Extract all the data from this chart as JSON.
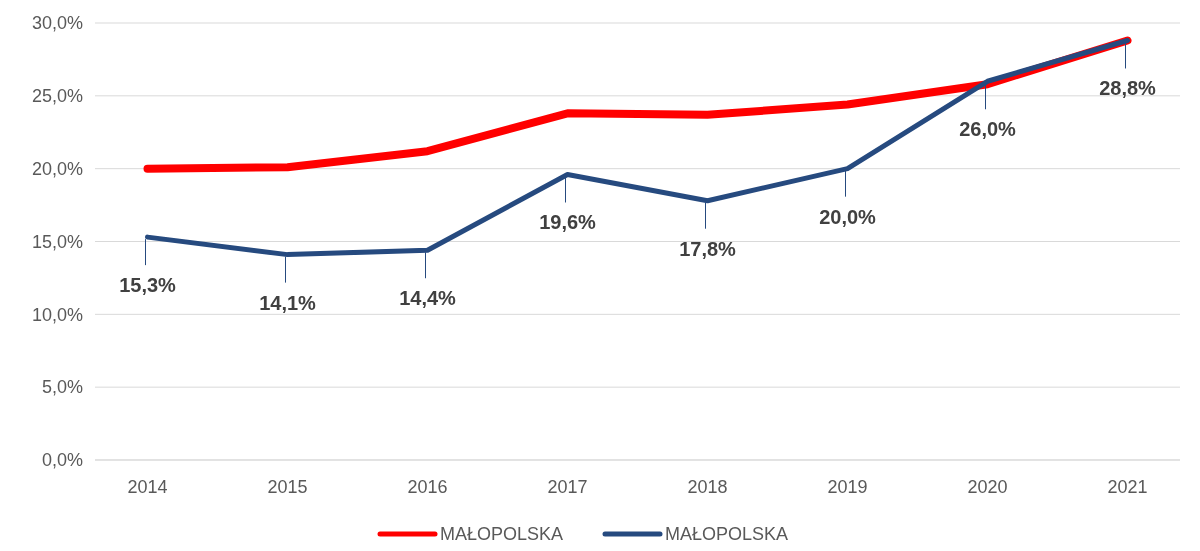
{
  "chart_data": {
    "type": "line",
    "categories": [
      "2014",
      "2015",
      "2016",
      "2017",
      "2018",
      "2019",
      "2020",
      "2021"
    ],
    "series": [
      {
        "name": "MAŁOPOLSKA",
        "color": "#ff0000",
        "values": [
          20.0,
          20.1,
          21.2,
          23.8,
          23.7,
          24.4,
          25.8,
          28.8
        ]
      },
      {
        "name": "MAŁOPOLSKA",
        "color": "#264a7f",
        "values": [
          15.3,
          14.1,
          14.4,
          19.6,
          17.8,
          20.0,
          26.0,
          28.8
        ],
        "value_labels": [
          "15,3%",
          "14,1%",
          "14,4%",
          "19,6%",
          "17,8%",
          "20,0%",
          "26,0%",
          "28,8%"
        ]
      }
    ],
    "ylim": [
      0,
      30
    ],
    "yticks": [
      {
        "value": 0,
        "label": "0,0%"
      },
      {
        "value": 5,
        "label": "5,0%"
      },
      {
        "value": 10,
        "label": "10,0%"
      },
      {
        "value": 15,
        "label": "15,0%"
      },
      {
        "value": 20,
        "label": "20,0%"
      },
      {
        "value": 25,
        "label": "25,0%"
      },
      {
        "value": 30,
        "label": "30,0%"
      }
    ],
    "grid": "y",
    "legend": "bottom",
    "marker": "none",
    "line_style": "solid"
  }
}
